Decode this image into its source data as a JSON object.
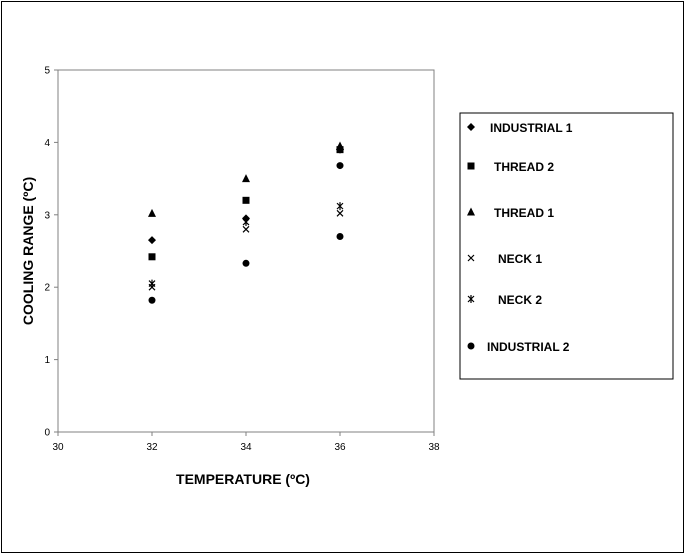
{
  "chart_data": {
    "type": "scatter",
    "title": "",
    "xlabel": "TEMPERATURE (ºC)",
    "ylabel": "COOLING RANGE (ºC)",
    "xlim": [
      30,
      38
    ],
    "ylim": [
      0,
      5
    ],
    "xticks": [
      30,
      32,
      34,
      36,
      38
    ],
    "yticks": [
      0,
      1,
      2,
      3,
      4,
      5
    ],
    "grid": false,
    "legend_position": "right",
    "series": [
      {
        "name": "INDUSTRIAL 1",
        "marker": "diamond",
        "x": [
          32,
          34,
          36
        ],
        "y": [
          2.65,
          2.95,
          3.9
        ]
      },
      {
        "name": "THREAD 2",
        "marker": "square",
        "x": [
          32,
          34,
          36
        ],
        "y": [
          2.42,
          3.2,
          3.9
        ]
      },
      {
        "name": "THREAD 1",
        "marker": "triangle",
        "x": [
          32,
          34,
          36
        ],
        "y": [
          3.02,
          3.5,
          3.95
        ]
      },
      {
        "name": "NECK 1",
        "marker": "x",
        "x": [
          32,
          34,
          36
        ],
        "y": [
          2.0,
          2.8,
          3.02
        ]
      },
      {
        "name": "NECK 2",
        "marker": "star",
        "x": [
          32,
          34,
          36
        ],
        "y": [
          2.05,
          2.9,
          3.12
        ]
      },
      {
        "name": "INDUSTRIAL 2",
        "marker": "circle",
        "x": [
          32,
          34,
          36
        ],
        "y": [
          1.82,
          2.33,
          2.7
        ]
      }
    ],
    "extra_points": [
      {
        "series": "INDUSTRIAL 2",
        "x": 36,
        "y": 3.68
      }
    ],
    "colors": {
      "marker": "#000000",
      "axis": "#808080",
      "text": "#000000"
    }
  }
}
